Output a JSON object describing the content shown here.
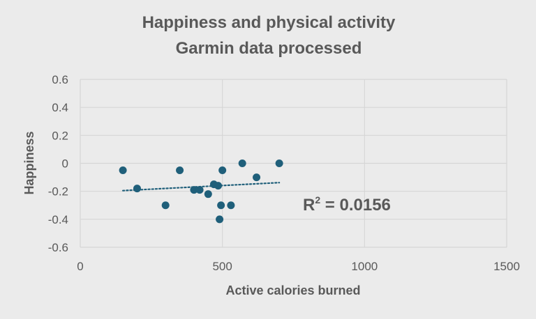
{
  "chart_data": {
    "type": "scatter",
    "title": "Happiness and physical activity",
    "subtitle": "Garmin data processed",
    "xlabel": "Active calories burned",
    "ylabel": "Happiness",
    "xlim": [
      0,
      1500
    ],
    "ylim": [
      -0.6,
      0.6
    ],
    "x_ticks": [
      0,
      500,
      1000,
      1500
    ],
    "y_ticks": [
      0.6,
      0.4,
      0.2,
      0,
      -0.2,
      -0.4,
      -0.6
    ],
    "x_tick_labels": [
      "0",
      "500",
      "1000",
      "1500"
    ],
    "y_tick_labels": [
      "0.6",
      "0.4",
      "0.2",
      "0",
      "-0.2",
      "-0.4",
      "-0.6"
    ],
    "grid": true,
    "series": [
      {
        "color": "#1f5f7a",
        "points": [
          {
            "x": 150,
            "y": -0.05
          },
          {
            "x": 200,
            "y": -0.18
          },
          {
            "x": 300,
            "y": -0.3
          },
          {
            "x": 350,
            "y": -0.05
          },
          {
            "x": 400,
            "y": -0.19
          },
          {
            "x": 420,
            "y": -0.19
          },
          {
            "x": 450,
            "y": -0.22
          },
          {
            "x": 470,
            "y": -0.15
          },
          {
            "x": 485,
            "y": -0.16
          },
          {
            "x": 490,
            "y": -0.4
          },
          {
            "x": 495,
            "y": -0.3
          },
          {
            "x": 500,
            "y": -0.05
          },
          {
            "x": 530,
            "y": -0.3
          },
          {
            "x": 570,
            "y": 0.0
          },
          {
            "x": 620,
            "y": -0.1
          },
          {
            "x": 700,
            "y": 0.0
          }
        ]
      }
    ],
    "trendline": {
      "type": "linear",
      "style": "dotted",
      "color": "#1f5f7a",
      "x_start": 150,
      "x_end": 700,
      "y_start": -0.195,
      "y_end": -0.138
    },
    "annotations": {
      "r2_label": "R",
      "r2_exponent": "2",
      "r2_value": " = 0.0156"
    }
  }
}
